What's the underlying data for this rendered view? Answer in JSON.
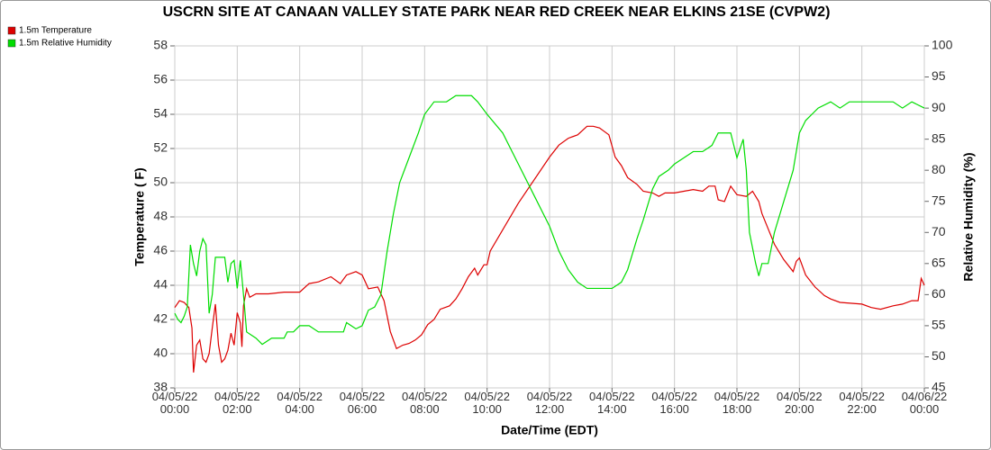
{
  "chart_data": {
    "type": "line",
    "title": "USCRN SITE AT CANAAN VALLEY STATE PARK NEAR RED CREEK NEAR ELKINS 21SE (CVPW2)",
    "xlabel": "Date/Time (EDT)",
    "ylabel": "Temperature ( F)",
    "y2label": "Relative Humidity (%)",
    "xlim": [
      0,
      24
    ],
    "xticks": [
      {
        "value": 0,
        "label": "04/05/22\n00:00"
      },
      {
        "value": 2,
        "label": "04/05/22\n02:00"
      },
      {
        "value": 4,
        "label": "04/05/22\n04:00"
      },
      {
        "value": 6,
        "label": "04/05/22\n06:00"
      },
      {
        "value": 8,
        "label": "04/05/22\n08:00"
      },
      {
        "value": 10,
        "label": "04/05/22\n10:00"
      },
      {
        "value": 12,
        "label": "04/05/22\n12:00"
      },
      {
        "value": 14,
        "label": "04/05/22\n14:00"
      },
      {
        "value": 16,
        "label": "04/05/22\n16:00"
      },
      {
        "value": 18,
        "label": "04/05/22\n18:00"
      },
      {
        "value": 20,
        "label": "04/05/22\n20:00"
      },
      {
        "value": 22,
        "label": "04/05/22\n22:00"
      },
      {
        "value": 24,
        "label": "04/06/22\n00:00"
      }
    ],
    "ylim": [
      38,
      58
    ],
    "yticks": [
      38,
      40,
      42,
      44,
      46,
      48,
      50,
      52,
      54,
      56,
      58
    ],
    "y2lim": [
      45,
      100
    ],
    "y2ticks": [
      45,
      50,
      55,
      60,
      65,
      70,
      75,
      80,
      85,
      90,
      95,
      100
    ],
    "grid": true,
    "legend": "top-left",
    "series": [
      {
        "name": "1.5m Temperature",
        "color": "#dd0000",
        "axis": "y",
        "x": [
          0,
          0.15,
          0.3,
          0.45,
          0.55,
          0.6,
          0.7,
          0.8,
          0.9,
          1.0,
          1.1,
          1.2,
          1.3,
          1.4,
          1.5,
          1.6,
          1.7,
          1.8,
          1.9,
          2.0,
          2.1,
          2.15,
          2.2,
          2.3,
          2.4,
          2.6,
          3.0,
          3.5,
          4.0,
          4.3,
          4.6,
          5.0,
          5.3,
          5.5,
          5.8,
          6.0,
          6.2,
          6.5,
          6.7,
          6.9,
          7.1,
          7.3,
          7.5,
          7.7,
          7.9,
          8.1,
          8.3,
          8.5,
          8.8,
          9.0,
          9.2,
          9.4,
          9.6,
          9.7,
          9.9,
          10.0,
          10.1,
          11.0,
          12.0,
          12.3,
          12.6,
          12.9,
          13.2,
          13.4,
          13.6,
          13.9,
          14.1,
          14.3,
          14.5,
          14.8,
          15.0,
          15.3,
          15.5,
          15.7,
          16.0,
          16.3,
          16.6,
          16.9,
          17.1,
          17.3,
          17.4,
          17.6,
          17.8,
          18.0,
          18.3,
          18.5,
          18.7,
          18.8,
          19.0,
          19.2,
          19.5,
          19.8,
          19.9,
          20.0,
          20.2,
          20.5,
          20.8,
          21.0,
          21.3,
          22.0,
          22.3,
          22.6,
          23.0,
          23.3,
          23.6,
          23.8,
          23.9,
          24.0
        ],
        "values": [
          42.7,
          43.1,
          43.0,
          42.7,
          41.5,
          38.9,
          40.5,
          40.8,
          39.7,
          39.5,
          40.0,
          41.5,
          42.9,
          40.5,
          39.5,
          39.7,
          40.2,
          41.2,
          40.5,
          42.4,
          41.8,
          40.4,
          42.8,
          43.8,
          43.3,
          43.5,
          43.5,
          43.6,
          43.6,
          44.1,
          44.2,
          44.5,
          44.1,
          44.6,
          44.8,
          44.6,
          43.8,
          43.9,
          43.1,
          41.3,
          40.3,
          40.5,
          40.6,
          40.8,
          41.1,
          41.7,
          42.0,
          42.6,
          42.8,
          43.2,
          43.8,
          44.5,
          45.0,
          44.6,
          45.2,
          45.2,
          46.0,
          48.8,
          51.5,
          52.2,
          52.6,
          52.8,
          53.3,
          53.3,
          53.2,
          52.8,
          51.5,
          51.0,
          50.3,
          49.9,
          49.5,
          49.4,
          49.2,
          49.4,
          49.4,
          49.5,
          49.6,
          49.5,
          49.8,
          49.8,
          49.0,
          48.9,
          49.8,
          49.3,
          49.2,
          49.5,
          48.9,
          48.2,
          47.3,
          46.4,
          45.5,
          44.8,
          45.4,
          45.6,
          44.6,
          43.9,
          43.4,
          43.2,
          43.0,
          42.9,
          42.7,
          42.6,
          42.8,
          42.9,
          43.1,
          43.1,
          44.4,
          44.0
        ]
      },
      {
        "name": "1.5m Relative Humidity",
        "color": "#00dd00",
        "axis": "y2",
        "x": [
          0,
          0.1,
          0.2,
          0.3,
          0.4,
          0.5,
          0.6,
          0.7,
          0.8,
          0.9,
          1.0,
          1.1,
          1.2,
          1.3,
          1.45,
          1.6,
          1.7,
          1.8,
          1.9,
          2.0,
          2.1,
          2.2,
          2.3,
          2.6,
          2.8,
          3.1,
          3.5,
          3.6,
          3.8,
          4.0,
          4.3,
          4.6,
          5.0,
          5.4,
          5.5,
          5.8,
          6.0,
          6.2,
          6.4,
          6.6,
          6.8,
          7.0,
          7.2,
          7.5,
          7.8,
          8.0,
          8.3,
          8.7,
          9.0,
          9.5,
          9.7,
          10.0,
          10.5,
          11.0,
          11.5,
          12.0,
          12.3,
          12.6,
          12.9,
          13.2,
          13.5,
          14.0,
          14.3,
          14.5,
          14.8,
          15.0,
          15.3,
          15.5,
          15.8,
          16.0,
          16.3,
          16.6,
          16.9,
          17.2,
          17.4,
          17.6,
          17.8,
          18.0,
          18.2,
          18.3,
          18.4,
          18.6,
          18.7,
          18.8,
          19.0,
          19.2,
          19.5,
          19.8,
          20.0,
          20.2,
          20.4,
          20.6,
          21.0,
          21.3,
          21.6,
          22.0,
          23.0,
          23.3,
          23.6,
          24.0
        ],
        "values": [
          57,
          56,
          55.5,
          56.5,
          58,
          68,
          65,
          63,
          67,
          69,
          68,
          57,
          60,
          66,
          66,
          66,
          62,
          65,
          65.5,
          61,
          65.5,
          60,
          54,
          53,
          52,
          53,
          53,
          54,
          54,
          55,
          55,
          54,
          54,
          54,
          55.5,
          54.5,
          55,
          57.5,
          58,
          60,
          67,
          73,
          78,
          82,
          86,
          89,
          91,
          91,
          92,
          92,
          91,
          89,
          86,
          81,
          76,
          71,
          67,
          64,
          62,
          61,
          61,
          61,
          62,
          64,
          69,
          72,
          77,
          79,
          80,
          81,
          82,
          83,
          83,
          84,
          86,
          86,
          86,
          82,
          85,
          80,
          70,
          65,
          63,
          65,
          65,
          70,
          75,
          80,
          86,
          88,
          89,
          90,
          91,
          90,
          91,
          91,
          91,
          90,
          91,
          90
        ]
      }
    ]
  }
}
